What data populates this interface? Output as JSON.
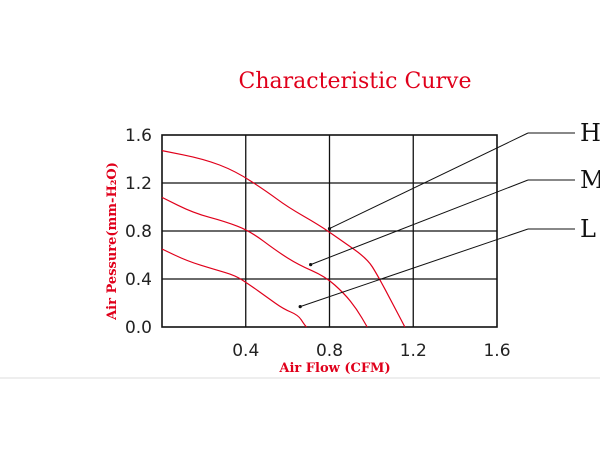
{
  "chart_data": {
    "type": "line",
    "title": "Characteristic Curve",
    "xlabel": "Air Flow (CFM)",
    "ylabel": "Air Pessure(mm-H₂O)",
    "xlim": [
      0,
      1.6
    ],
    "ylim": [
      0,
      1.6
    ],
    "x_ticks": [
      "0.4",
      "0.8",
      "1.2",
      "1.6"
    ],
    "y_ticks": [
      "1.6",
      "1.2",
      "0.8",
      "0.4",
      "0.0"
    ],
    "x_tick_values": [
      0.4,
      0.8,
      1.2,
      1.6
    ],
    "y_tick_values": [
      1.6,
      1.2,
      0.8,
      0.4,
      0.0
    ],
    "grid": true,
    "series": [
      {
        "name": "H",
        "color": "#e0001b",
        "points": [
          [
            0.0,
            1.47
          ],
          [
            0.2,
            1.4
          ],
          [
            0.35,
            1.3
          ],
          [
            0.5,
            1.13
          ],
          [
            0.6,
            1.0
          ],
          [
            0.75,
            0.85
          ],
          [
            0.85,
            0.73
          ],
          [
            0.98,
            0.57
          ],
          [
            1.03,
            0.43
          ],
          [
            1.1,
            0.2
          ],
          [
            1.16,
            0.0
          ]
        ]
      },
      {
        "name": "M",
        "color": "#e0001b",
        "points": [
          [
            0.0,
            1.08
          ],
          [
            0.15,
            0.95
          ],
          [
            0.3,
            0.88
          ],
          [
            0.42,
            0.8
          ],
          [
            0.55,
            0.63
          ],
          [
            0.65,
            0.52
          ],
          [
            0.78,
            0.42
          ],
          [
            0.87,
            0.28
          ],
          [
            0.93,
            0.15
          ],
          [
            0.98,
            0.0
          ]
        ]
      },
      {
        "name": "L",
        "color": "#e0001b",
        "points": [
          [
            0.0,
            0.65
          ],
          [
            0.12,
            0.55
          ],
          [
            0.25,
            0.48
          ],
          [
            0.35,
            0.43
          ],
          [
            0.42,
            0.35
          ],
          [
            0.5,
            0.25
          ],
          [
            0.58,
            0.15
          ],
          [
            0.65,
            0.1
          ],
          [
            0.68,
            0.02
          ],
          [
            0.69,
            0.0
          ]
        ]
      }
    ],
    "series_labels": [
      "H",
      "M",
      "L"
    ]
  }
}
